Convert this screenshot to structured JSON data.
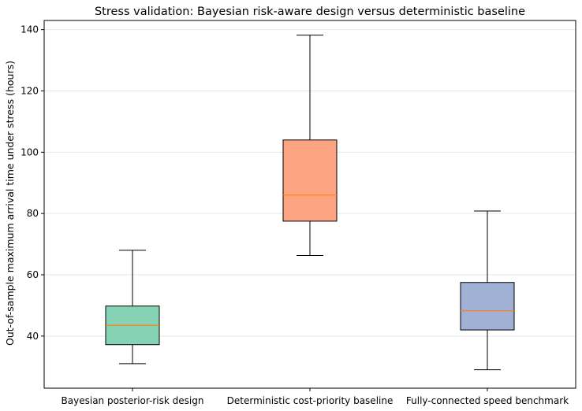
{
  "chart_data": {
    "type": "boxplot",
    "title": "Stress validation: Bayesian risk-aware design versus deterministic baseline",
    "xlabel": "",
    "ylabel": "Out-of-sample maximum arrival time under stress (hours)",
    "ylim": [
      23,
      143
    ],
    "yticks": [
      40,
      60,
      80,
      100,
      120,
      140
    ],
    "grid": "y",
    "categories": [
      "Bayesian posterior-risk design",
      "Deterministic cost-priority baseline",
      "Fully-connected speed benchmark"
    ],
    "boxes": [
      {
        "min": 31,
        "q1": 37.2,
        "median": 43.5,
        "q3": 49.8,
        "max": 68,
        "color": "#87d1b5"
      },
      {
        "min": 66.3,
        "q1": 77.5,
        "median": 86,
        "q3": 104,
        "max": 138.2,
        "color": "#fca382"
      },
      {
        "min": 29,
        "q1": 42,
        "median": 48.3,
        "q3": 57.5,
        "max": 80.8,
        "color": "#a1b1d6"
      }
    ]
  }
}
